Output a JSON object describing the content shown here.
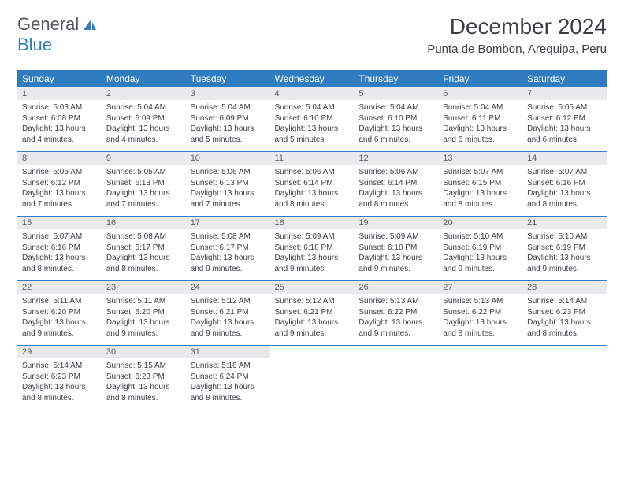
{
  "logo": {
    "text1": "General",
    "text2": "Blue"
  },
  "title": "December 2024",
  "location": "Punta de Bombon, Arequipa, Peru",
  "colors": {
    "header_bg": "#2f7dc0",
    "daynum_bg": "#e9eaeb",
    "text": "#3a3f44",
    "rule": "#2f7dc0"
  },
  "daynames": [
    "Sunday",
    "Monday",
    "Tuesday",
    "Wednesday",
    "Thursday",
    "Friday",
    "Saturday"
  ],
  "weeks": [
    [
      {
        "n": "1",
        "sr": "5:03 AM",
        "ss": "6:08 PM",
        "dl": "13 hours and 4 minutes."
      },
      {
        "n": "2",
        "sr": "5:04 AM",
        "ss": "6:09 PM",
        "dl": "13 hours and 4 minutes."
      },
      {
        "n": "3",
        "sr": "5:04 AM",
        "ss": "6:09 PM",
        "dl": "13 hours and 5 minutes."
      },
      {
        "n": "4",
        "sr": "5:04 AM",
        "ss": "6:10 PM",
        "dl": "13 hours and 5 minutes."
      },
      {
        "n": "5",
        "sr": "5:04 AM",
        "ss": "6:10 PM",
        "dl": "13 hours and 6 minutes."
      },
      {
        "n": "6",
        "sr": "5:04 AM",
        "ss": "6:11 PM",
        "dl": "13 hours and 6 minutes."
      },
      {
        "n": "7",
        "sr": "5:05 AM",
        "ss": "6:12 PM",
        "dl": "13 hours and 6 minutes."
      }
    ],
    [
      {
        "n": "8",
        "sr": "5:05 AM",
        "ss": "6:12 PM",
        "dl": "13 hours and 7 minutes."
      },
      {
        "n": "9",
        "sr": "5:05 AM",
        "ss": "6:13 PM",
        "dl": "13 hours and 7 minutes."
      },
      {
        "n": "10",
        "sr": "5:06 AM",
        "ss": "6:13 PM",
        "dl": "13 hours and 7 minutes."
      },
      {
        "n": "11",
        "sr": "5:06 AM",
        "ss": "6:14 PM",
        "dl": "13 hours and 8 minutes."
      },
      {
        "n": "12",
        "sr": "5:06 AM",
        "ss": "6:14 PM",
        "dl": "13 hours and 8 minutes."
      },
      {
        "n": "13",
        "sr": "5:07 AM",
        "ss": "6:15 PM",
        "dl": "13 hours and 8 minutes."
      },
      {
        "n": "14",
        "sr": "5:07 AM",
        "ss": "6:16 PM",
        "dl": "13 hours and 8 minutes."
      }
    ],
    [
      {
        "n": "15",
        "sr": "5:07 AM",
        "ss": "6:16 PM",
        "dl": "13 hours and 8 minutes."
      },
      {
        "n": "16",
        "sr": "5:08 AM",
        "ss": "6:17 PM",
        "dl": "13 hours and 8 minutes."
      },
      {
        "n": "17",
        "sr": "5:08 AM",
        "ss": "6:17 PM",
        "dl": "13 hours and 9 minutes."
      },
      {
        "n": "18",
        "sr": "5:09 AM",
        "ss": "6:18 PM",
        "dl": "13 hours and 9 minutes."
      },
      {
        "n": "19",
        "sr": "5:09 AM",
        "ss": "6:18 PM",
        "dl": "13 hours and 9 minutes."
      },
      {
        "n": "20",
        "sr": "5:10 AM",
        "ss": "6:19 PM",
        "dl": "13 hours and 9 minutes."
      },
      {
        "n": "21",
        "sr": "5:10 AM",
        "ss": "6:19 PM",
        "dl": "13 hours and 9 minutes."
      }
    ],
    [
      {
        "n": "22",
        "sr": "5:11 AM",
        "ss": "6:20 PM",
        "dl": "13 hours and 9 minutes."
      },
      {
        "n": "23",
        "sr": "5:11 AM",
        "ss": "6:20 PM",
        "dl": "13 hours and 9 minutes."
      },
      {
        "n": "24",
        "sr": "5:12 AM",
        "ss": "6:21 PM",
        "dl": "13 hours and 9 minutes."
      },
      {
        "n": "25",
        "sr": "5:12 AM",
        "ss": "6:21 PM",
        "dl": "13 hours and 9 minutes."
      },
      {
        "n": "26",
        "sr": "5:13 AM",
        "ss": "6:22 PM",
        "dl": "13 hours and 9 minutes."
      },
      {
        "n": "27",
        "sr": "5:13 AM",
        "ss": "6:22 PM",
        "dl": "13 hours and 8 minutes."
      },
      {
        "n": "28",
        "sr": "5:14 AM",
        "ss": "6:23 PM",
        "dl": "13 hours and 8 minutes."
      }
    ],
    [
      {
        "n": "29",
        "sr": "5:14 AM",
        "ss": "6:23 PM",
        "dl": "13 hours and 8 minutes."
      },
      {
        "n": "30",
        "sr": "5:15 AM",
        "ss": "6:23 PM",
        "dl": "13 hours and 8 minutes."
      },
      {
        "n": "31",
        "sr": "5:16 AM",
        "ss": "6:24 PM",
        "dl": "13 hours and 8 minutes."
      },
      null,
      null,
      null,
      null
    ]
  ],
  "labels": {
    "sunrise": "Sunrise:",
    "sunset": "Sunset:",
    "daylight": "Daylight:"
  }
}
